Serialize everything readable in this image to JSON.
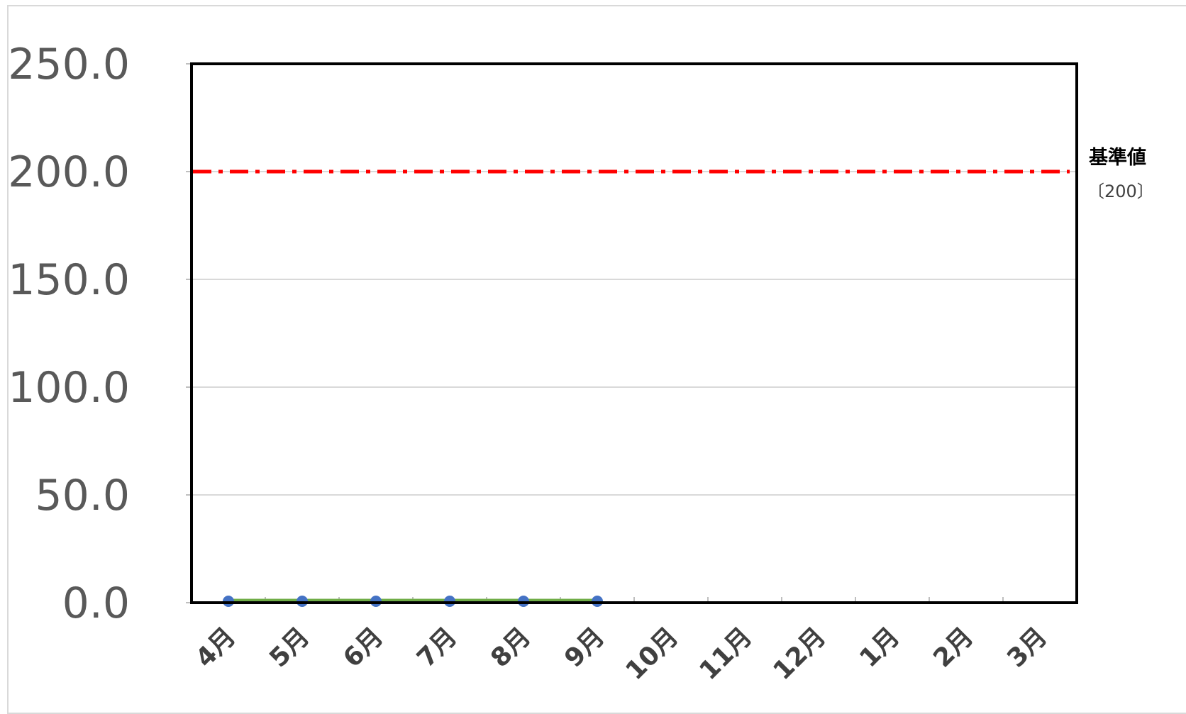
{
  "chart_data": {
    "type": "line",
    "title": "",
    "xlabel": "",
    "ylabel": "",
    "categories": [
      "4月",
      "5月",
      "6月",
      "7月",
      "8月",
      "9月",
      "10月",
      "11月",
      "12月",
      "1月",
      "2月",
      "3月"
    ],
    "series": [
      {
        "values": [
          0,
          0,
          0,
          0,
          0,
          0,
          null,
          null,
          null,
          null,
          null,
          null
        ],
        "line_color": "#70ad47",
        "marker_color": "#4472c4"
      }
    ],
    "y_ticks": [
      "0.0",
      "50.0",
      "100.0",
      "150.0",
      "200.0",
      "250.0"
    ],
    "ylim": [
      0,
      250
    ],
    "grid": true,
    "reference_line": {
      "label": "基準値",
      "value_text": "〔200〕",
      "value": 200,
      "color": "#ff0000",
      "style": "dash-dot"
    },
    "legend": "none"
  }
}
